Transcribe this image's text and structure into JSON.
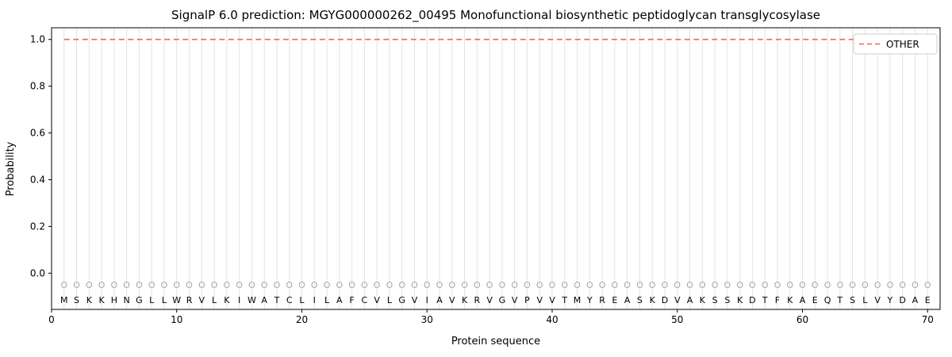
{
  "figure": {
    "kind": "matplotlib-style static prediction plot",
    "tool": "SignalP 6.0"
  },
  "colors": {
    "other_line": "#ee6666",
    "grid": "#e3e3e3",
    "marker": "#a9a9a9",
    "text": "#000000",
    "legend_border": "#cccccc",
    "background": "#ffffff"
  },
  "chart_data": {
    "type": "line",
    "title": "SignalP 6.0 prediction: MGYG000000262_00495 Monofunctional biosynthetic peptidoglycan transglycosylase",
    "xlabel": "Protein sequence",
    "ylabel": "Probability",
    "xlim": [
      0,
      71
    ],
    "ylim": [
      -0.155,
      1.05
    ],
    "xticks": [
      0,
      10,
      20,
      30,
      40,
      50,
      60,
      70
    ],
    "yticks": [
      "0.0",
      "0.2",
      "0.4",
      "0.6",
      "0.8",
      "1.0"
    ],
    "grid": "light vertical gridline at every residue position 1-70",
    "legend": {
      "position": "upper right",
      "entries": [
        {
          "label": "OTHER",
          "color": "#ee6666",
          "linestyle": "dashed"
        }
      ]
    },
    "series": [
      {
        "name": "OTHER",
        "color": "#ee6666",
        "linestyle": "dashed",
        "x_start": 1,
        "x_end": 70,
        "constant_y": 1.0,
        "note": "OTHER probability is constant at 1.0 across all 70 positions"
      }
    ],
    "sequence": "MSKKHNGLLWRVLKIWATCLILAFCVLGVIAVKRVGVPVVTMYREASKDVAKSSKDTFKAEQTSLVYDAE",
    "sequence_length": 70,
    "per_position_marker": "O",
    "per_position_marker_meaning": "predicted class OTHER at every residue position"
  }
}
